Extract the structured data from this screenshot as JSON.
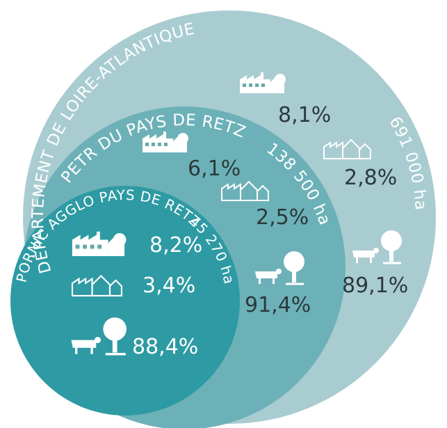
{
  "circles": [
    {
      "name": "DÉPARTEMENT DE LOIRE-ATLANTIQUE",
      "area": "691 000 ha",
      "shares": [
        "8,1%",
        "2,8%",
        "89,1%"
      ]
    },
    {
      "name": "PETR DU PAYS DE RETZ",
      "area": "138 500 ha",
      "shares": [
        "6,1%",
        "2,5%",
        "91,4%"
      ]
    },
    {
      "name": "PORNIC AGGLO PAYS DE RETZ",
      "area": "45 270 ha",
      "shares": [
        "8,2%",
        "3,4%",
        "88,4%"
      ]
    }
  ]
}
